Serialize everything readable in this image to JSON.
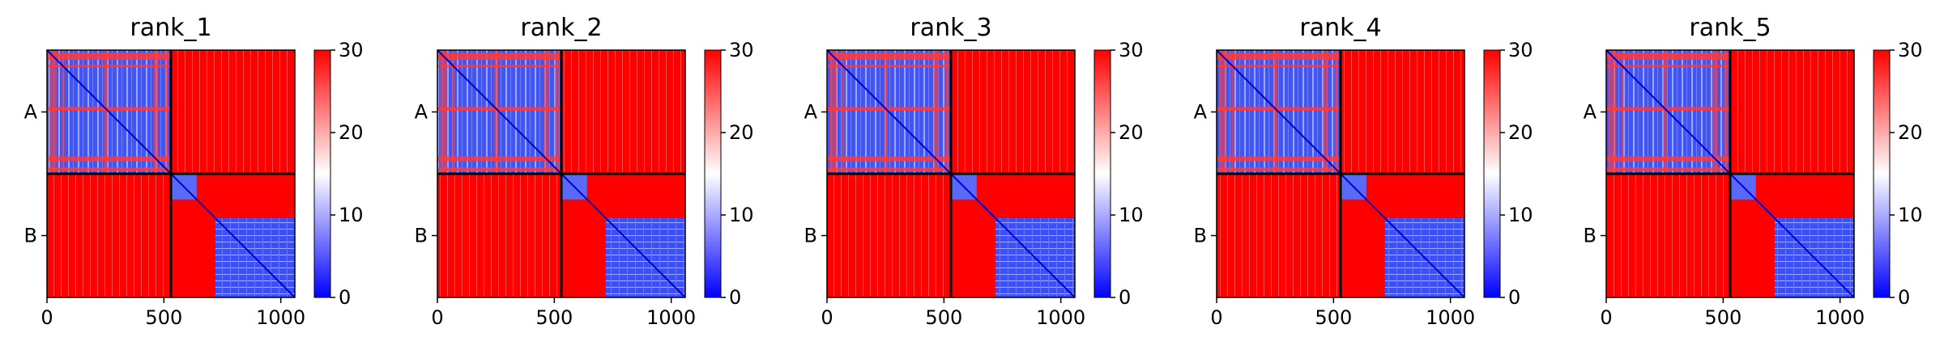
{
  "chart_data": [
    {
      "type": "heatmap",
      "title": "rank_1",
      "xlabel": "",
      "ylabel": "",
      "xlim": [
        0,
        1060
      ],
      "x_ticks": [
        "0",
        "500",
        "1000"
      ],
      "y_ticks": [
        "A",
        "B"
      ],
      "chain_boundary": 530,
      "colorbar": {
        "min": 0,
        "max": 30,
        "ticks": [
          "0",
          "10",
          "20",
          "30"
        ],
        "colors": [
          "#0000ff",
          "#ffffff",
          "#ff0000"
        ]
      },
      "blocks": {
        "A_A": "low values (blue) with red striped rows/columns",
        "A_B": 30,
        "B_A": 30,
        "B_B": "blue diagonal; red region for residues 530-720 vs 720-1060"
      }
    },
    {
      "type": "heatmap",
      "title": "rank_2",
      "xlabel": "",
      "ylabel": "",
      "xlim": [
        0,
        1060
      ],
      "x_ticks": [
        "0",
        "500",
        "1000"
      ],
      "y_ticks": [
        "A",
        "B"
      ],
      "chain_boundary": 530,
      "colorbar": {
        "min": 0,
        "max": 30,
        "ticks": [
          "0",
          "10",
          "20",
          "30"
        ],
        "colors": [
          "#0000ff",
          "#ffffff",
          "#ff0000"
        ]
      },
      "blocks": {
        "A_A": "low",
        "A_B": 30,
        "B_A": 30,
        "B_B": "low"
      }
    },
    {
      "type": "heatmap",
      "title": "rank_3",
      "xlabel": "",
      "ylabel": "",
      "xlim": [
        0,
        1060
      ],
      "x_ticks": [
        "0",
        "500",
        "1000"
      ],
      "y_ticks": [
        "A",
        "B"
      ],
      "chain_boundary": 530,
      "colorbar": {
        "min": 0,
        "max": 30,
        "ticks": [
          "0",
          "10",
          "20",
          "30"
        ],
        "colors": [
          "#0000ff",
          "#ffffff",
          "#ff0000"
        ]
      },
      "blocks": {
        "A_A": "low",
        "A_B": 30,
        "B_A": 30,
        "B_B": "low"
      }
    },
    {
      "type": "heatmap",
      "title": "rank_4",
      "xlabel": "",
      "ylabel": "",
      "xlim": [
        0,
        1060
      ],
      "x_ticks": [
        "0",
        "500",
        "1000"
      ],
      "y_ticks": [
        "A",
        "B"
      ],
      "chain_boundary": 530,
      "colorbar": {
        "min": 0,
        "max": 30,
        "ticks": [
          "0",
          "10",
          "20",
          "30"
        ],
        "colors": [
          "#0000ff",
          "#ffffff",
          "#ff0000"
        ]
      },
      "blocks": {
        "A_A": "low",
        "A_B": 30,
        "B_A": 30,
        "B_B": "low"
      }
    },
    {
      "type": "heatmap",
      "title": "rank_5",
      "xlabel": "",
      "ylabel": "",
      "xlim": [
        0,
        1060
      ],
      "x_ticks": [
        "0",
        "500",
        "1000"
      ],
      "y_ticks": [
        "A",
        "B"
      ],
      "chain_boundary": 530,
      "colorbar": {
        "min": 0,
        "max": 30,
        "ticks": [
          "0",
          "10",
          "20",
          "30"
        ],
        "colors": [
          "#0000ff",
          "#ffffff",
          "#ff0000"
        ]
      },
      "blocks": {
        "A_A": "low",
        "A_B": 30,
        "B_A": 30,
        "B_B": "low"
      }
    }
  ]
}
